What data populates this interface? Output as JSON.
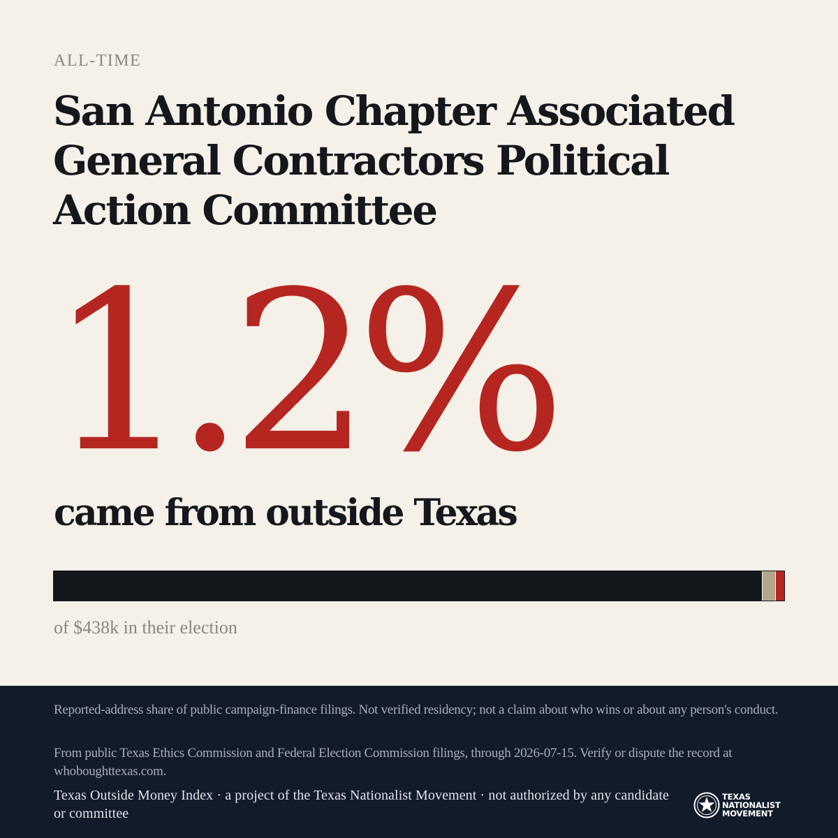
{
  "header": {
    "eyebrow": "ALL-TIME",
    "title": "San Antonio Chapter Associated General Contractors Political Action Committee"
  },
  "stat": {
    "value": "1.2%",
    "caption": "came from outside Texas"
  },
  "share_bar": {
    "inside_texas_fraction": 0.969,
    "unknown_fraction": 0.019,
    "outside_texas_fraction": 0.012,
    "colors": {
      "inside": "#14171c",
      "unknown": "#b3a68c",
      "outside": "#b52620"
    }
  },
  "total_note": "of $438k in their election",
  "footer": {
    "disclaimer": "Reported-address share of public campaign-finance filings. Not verified residency; not a claim about who wins or about any person's conduct.",
    "source": "From public Texas Ethics Commission and Federal Election Commission filings, through 2026-07-15. Verify or dispute the record at whoboughttexas.com.",
    "credit": "Texas Outside Money Index · a project of the Texas Nationalist Movement · not authorized by any candidate or committee",
    "logo": {
      "icon": "lone-star-seal-icon",
      "line1": "TEXAS",
      "line2": "NATIONALIST",
      "line3": "MOVEMENT"
    }
  },
  "colors": {
    "background": "#f5f0e8",
    "ink": "#14171c",
    "accent": "#b52620",
    "footer_bg": "#111b2a"
  }
}
